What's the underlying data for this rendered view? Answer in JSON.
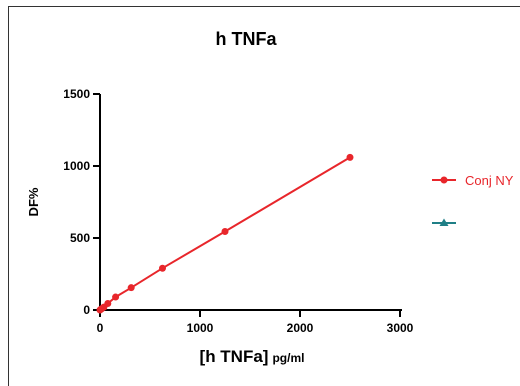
{
  "chart_data": {
    "type": "line",
    "title": "h TNFa",
    "ylabel": "DF%",
    "xlabel": "[h TNFa]",
    "xlabel_unit": "pg/ml",
    "xlim": [
      0,
      3000
    ],
    "ylim": [
      0,
      1500
    ],
    "xticks": [
      "0",
      "1000",
      "2000",
      "3000"
    ],
    "yticks": [
      "0",
      "500",
      "1000",
      "1500"
    ],
    "grid": false,
    "legend_position": "right",
    "series": [
      {
        "name": "Conj NY",
        "color": "#e8262b",
        "marker": "circle",
        "x": [
          0,
          9.8,
          19.5,
          39,
          78,
          156,
          312,
          625,
          1250,
          2500
        ],
        "y": [
          0,
          5,
          10,
          20,
          45,
          90,
          155,
          290,
          545,
          1060
        ]
      },
      {
        "name": "",
        "color": "#1f7f86",
        "marker": "triangle",
        "x": [],
        "y": []
      }
    ]
  }
}
